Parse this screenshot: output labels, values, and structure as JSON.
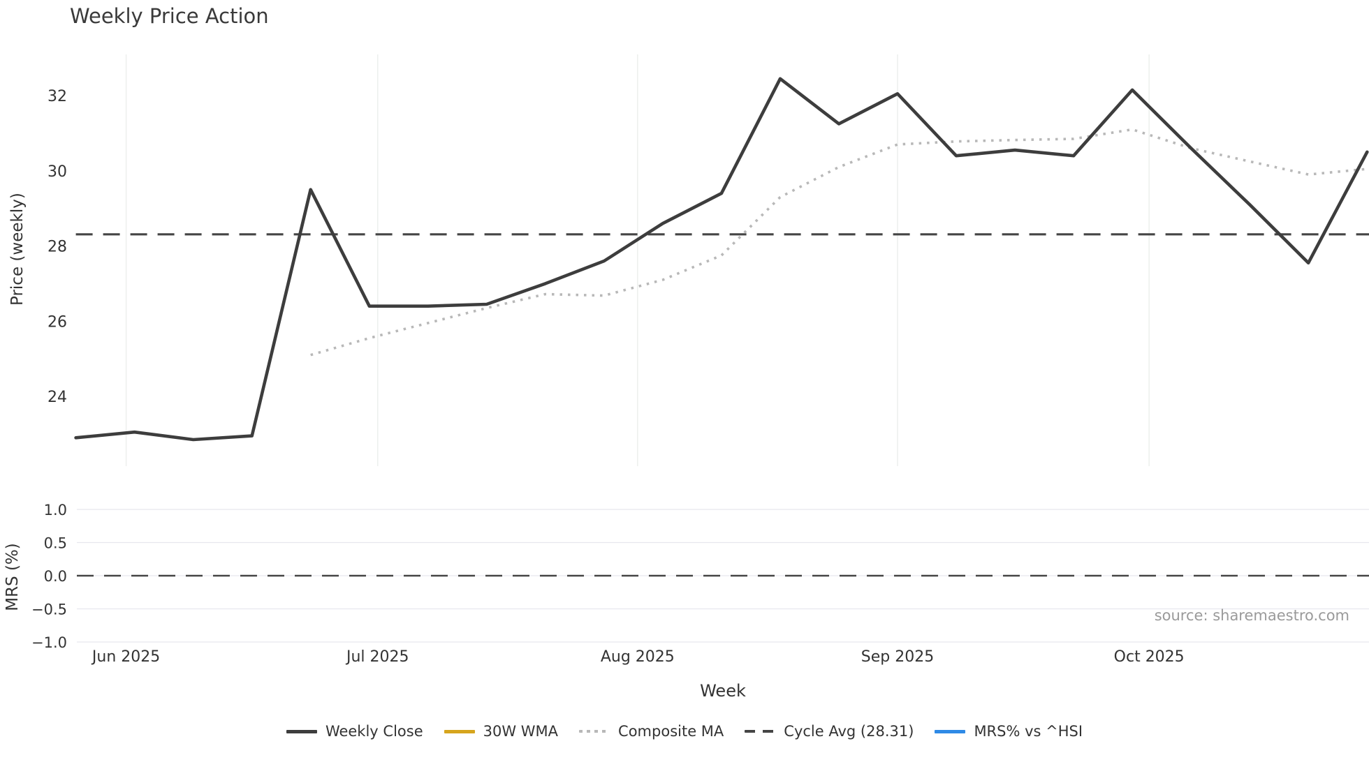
{
  "title": "Weekly Price Action",
  "source_credit": "source: sharemaestro.com",
  "colors": {
    "weekly_close": "#3d3d3d",
    "wma_30w": "#d6a51d",
    "composite_ma": "#b8b8b8",
    "cycle_avg": "#454545",
    "mrs_line": "#2e8ae6",
    "grid_vertical": "#edf0ee",
    "grid_horizontal": "#e7e7ee",
    "text": "#333333",
    "muted_text": "#9a9a9a"
  },
  "legend": {
    "items": [
      {
        "label": "Weekly Close",
        "style": "solid",
        "color": "#3d3d3d"
      },
      {
        "label": "30W WMA",
        "style": "solid",
        "color": "#d6a51d"
      },
      {
        "label": "Composite MA",
        "style": "dotted",
        "color": "#b8b8b8"
      },
      {
        "label": "Cycle Avg (28.31)",
        "style": "dashed",
        "color": "#454545"
      },
      {
        "label": "MRS% vs ^HSI",
        "style": "solid",
        "color": "#2e8ae6"
      }
    ]
  },
  "chart_data": [
    {
      "type": "line",
      "panel": "price",
      "title": "Weekly Price Action",
      "xlabel": "Week",
      "ylabel": "Price (weekly)",
      "ylim": [
        22.1,
        33.1
      ],
      "yticks": [
        24,
        26,
        28,
        30,
        32
      ],
      "grid": "vertical-months-only",
      "x_dates": [
        "2025-05-26",
        "2025-06-02",
        "2025-06-09",
        "2025-06-16",
        "2025-06-23",
        "2025-06-30",
        "2025-07-07",
        "2025-07-14",
        "2025-07-21",
        "2025-07-28",
        "2025-08-04",
        "2025-08-11",
        "2025-08-18",
        "2025-08-25",
        "2025-09-01",
        "2025-09-08",
        "2025-09-15",
        "2025-09-22",
        "2025-09-29",
        "2025-10-06",
        "2025-10-13",
        "2025-10-20",
        "2025-10-27"
      ],
      "xticks": [
        {
          "label": "Jun 2025",
          "week_offset": 0.857
        },
        {
          "label": "Jul 2025",
          "week_offset": 5.143
        },
        {
          "label": "Aug 2025",
          "week_offset": 9.571
        },
        {
          "label": "Sep 2025",
          "week_offset": 14.0
        },
        {
          "label": "Oct 2025",
          "week_offset": 18.286
        }
      ],
      "series": [
        {
          "name": "Weekly Close",
          "style": "solid",
          "values": [
            22.9,
            23.05,
            22.85,
            22.95,
            29.5,
            26.4,
            26.4,
            26.45,
            27.0,
            27.6,
            28.6,
            29.4,
            32.45,
            31.25,
            32.05,
            30.4,
            30.55,
            30.4,
            32.15,
            30.6,
            29.1,
            27.55,
            30.5
          ]
        },
        {
          "name": "Composite MA",
          "style": "dotted",
          "values": [
            null,
            null,
            null,
            null,
            25.1,
            25.55,
            25.95,
            26.35,
            26.72,
            26.68,
            27.1,
            27.75,
            29.3,
            30.1,
            30.7,
            30.78,
            30.82,
            30.85,
            31.1,
            30.6,
            30.25,
            29.9,
            30.05
          ]
        },
        {
          "name": "30W WMA",
          "style": "solid",
          "values": []
        }
      ],
      "reference_lines": [
        {
          "name": "Cycle Avg",
          "value": 28.31,
          "style": "dashed"
        }
      ]
    },
    {
      "type": "line",
      "panel": "mrs",
      "ylabel": "MRS (%)",
      "ylim": [
        -1.05,
        1.05
      ],
      "yticks": [
        1.0,
        0.5,
        0.0,
        -0.5,
        -1.0
      ],
      "ytick_labels": [
        "1.0",
        "0.5",
        "0.0",
        "−0.5",
        "−1.0"
      ],
      "grid": "horizontal",
      "series": [
        {
          "name": "MRS% vs ^HSI",
          "style": "solid",
          "values": []
        }
      ],
      "reference_lines": [
        {
          "name": "Zero",
          "value": 0.0,
          "style": "dashed"
        }
      ]
    }
  ]
}
